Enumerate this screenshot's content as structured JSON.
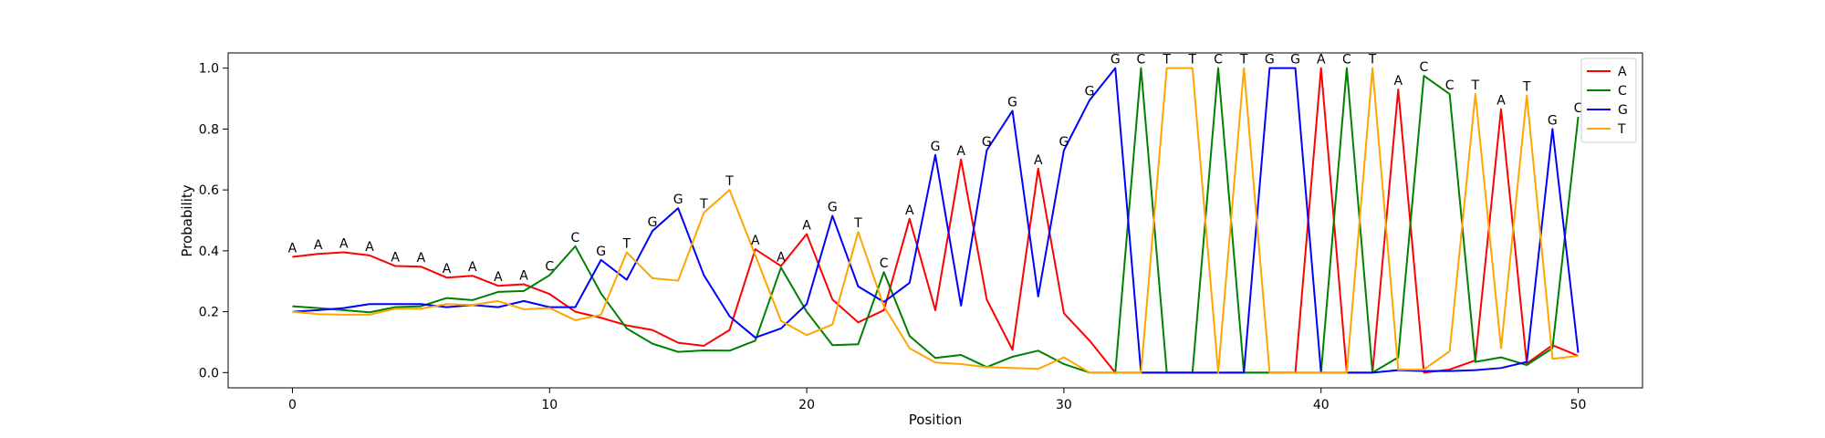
{
  "chart_data": {
    "type": "line",
    "title": "",
    "xlabel": "Position",
    "ylabel": "Probability",
    "xlim": [
      -2.5,
      52.5
    ],
    "ylim": [
      -0.05,
      1.05
    ],
    "xticks": [
      0,
      10,
      20,
      30,
      40,
      50
    ],
    "yticks": [
      0.0,
      0.2,
      0.4,
      0.6,
      0.8,
      1.0
    ],
    "ytick_labels": [
      "0.0",
      "0.2",
      "0.4",
      "0.6",
      "0.8",
      "1.0"
    ],
    "grid": false,
    "legend_position": "top-right",
    "x": [
      0,
      1,
      2,
      3,
      4,
      5,
      6,
      7,
      8,
      9,
      10,
      11,
      12,
      13,
      14,
      15,
      16,
      17,
      18,
      19,
      20,
      21,
      22,
      23,
      24,
      25,
      26,
      27,
      28,
      29,
      30,
      31,
      32,
      33,
      34,
      35,
      36,
      37,
      38,
      39,
      40,
      41,
      42,
      43,
      44,
      45,
      46,
      47,
      48,
      49,
      50
    ],
    "series": [
      {
        "name": "A",
        "color": "#ff0000",
        "values": [
          0.38,
          0.39,
          0.395,
          0.385,
          0.35,
          0.348,
          0.312,
          0.318,
          0.285,
          0.29,
          0.258,
          0.2,
          0.18,
          0.155,
          0.14,
          0.098,
          0.088,
          0.14,
          0.405,
          0.35,
          0.455,
          0.24,
          0.165,
          0.205,
          0.505,
          0.205,
          0.7,
          0.24,
          0.075,
          0.67,
          0.195,
          0.105,
          0.0,
          0.0,
          0.0,
          0.0,
          0.0,
          0.0,
          0.0,
          0.0,
          1.0,
          0.0,
          0.0,
          0.93,
          0.0,
          0.01,
          0.04,
          0.865,
          0.03,
          0.09,
          0.055
        ]
      },
      {
        "name": "C",
        "color": "#008000",
        "values": [
          0.218,
          0.212,
          0.205,
          0.198,
          0.215,
          0.218,
          0.245,
          0.238,
          0.265,
          0.268,
          0.32,
          0.415,
          0.26,
          0.145,
          0.095,
          0.068,
          0.073,
          0.072,
          0.105,
          0.345,
          0.2,
          0.09,
          0.093,
          0.33,
          0.12,
          0.048,
          0.058,
          0.018,
          0.052,
          0.072,
          0.028,
          0.0,
          0.0,
          1.0,
          0.0,
          0.0,
          1.0,
          0.0,
          0.0,
          0.0,
          0.0,
          1.0,
          0.0,
          0.05,
          0.975,
          0.915,
          0.035,
          0.05,
          0.025,
          0.08,
          0.84
        ]
      },
      {
        "name": "G",
        "color": "#0000ff",
        "values": [
          0.2,
          0.205,
          0.212,
          0.225,
          0.225,
          0.225,
          0.215,
          0.222,
          0.215,
          0.235,
          0.215,
          0.215,
          0.37,
          0.305,
          0.465,
          0.54,
          0.32,
          0.185,
          0.115,
          0.145,
          0.225,
          0.515,
          0.283,
          0.232,
          0.295,
          0.715,
          0.22,
          0.73,
          0.86,
          0.25,
          0.73,
          0.895,
          1.0,
          0.0,
          0.0,
          0.0,
          0.0,
          0.0,
          1.0,
          1.0,
          0.0,
          0.0,
          0.0,
          0.008,
          0.005,
          0.005,
          0.008,
          0.015,
          0.035,
          0.8,
          0.065
        ]
      },
      {
        "name": "T",
        "color": "#ffa500",
        "values": [
          0.2,
          0.192,
          0.19,
          0.19,
          0.21,
          0.21,
          0.225,
          0.222,
          0.235,
          0.208,
          0.212,
          0.172,
          0.19,
          0.395,
          0.31,
          0.302,
          0.525,
          0.6,
          0.385,
          0.17,
          0.123,
          0.158,
          0.462,
          0.218,
          0.08,
          0.033,
          0.028,
          0.018,
          0.015,
          0.012,
          0.05,
          0.0,
          0.0,
          0.0,
          1.0,
          1.0,
          0.0,
          1.0,
          0.0,
          0.0,
          0.0,
          0.0,
          1.0,
          0.01,
          0.01,
          0.07,
          0.915,
          0.08,
          0.91,
          0.045,
          0.055
        ]
      }
    ],
    "point_labels": [
      "A",
      "A",
      "A",
      "A",
      "A",
      "A",
      "A",
      "A",
      "A",
      "A",
      "C",
      "C",
      "G",
      "T",
      "G",
      "G",
      "T",
      "T",
      "A",
      "A",
      "A",
      "G",
      "T",
      "C",
      "A",
      "G",
      "A",
      "G",
      "G",
      "A",
      "G",
      "G",
      "G",
      "C",
      "T",
      "T",
      "C",
      "T",
      "G",
      "G",
      "A",
      "C",
      "T",
      "A",
      "C",
      "C",
      "T",
      "A",
      "T",
      "G",
      "C"
    ]
  }
}
